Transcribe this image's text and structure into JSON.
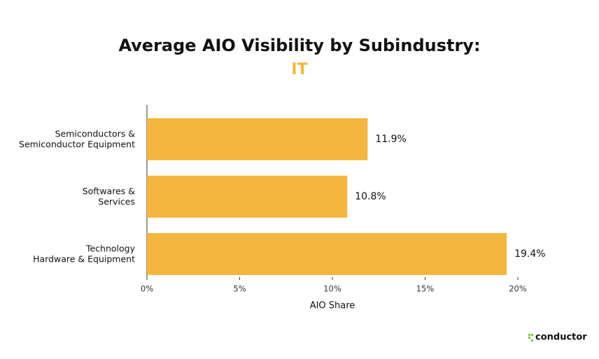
{
  "chart_data": {
    "type": "bar",
    "orientation": "horizontal",
    "title": "Average AIO Visibility by Subindustry:",
    "subtitle": "IT",
    "subtitle_color": "#f4b63f",
    "categories": [
      "Semiconductors &\nSemiconductor Equipment",
      "Softwares &\nServices",
      "Technology\nHardware & Equipment"
    ],
    "values": [
      11.9,
      10.8,
      19.4
    ],
    "value_labels": [
      "11.9%",
      "10.8%",
      "19.4%"
    ],
    "color": "#f4b63f",
    "xlabel": "AIO Share",
    "xlim": [
      0,
      20
    ],
    "xticks": [
      {
        "value": 0,
        "label": "0%"
      },
      {
        "value": 5,
        "label": "5%"
      },
      {
        "value": 10,
        "label": "10%"
      },
      {
        "value": 15,
        "label": "15%"
      },
      {
        "value": 20,
        "label": "20%"
      }
    ],
    "grid": false
  },
  "brand": "conductor"
}
